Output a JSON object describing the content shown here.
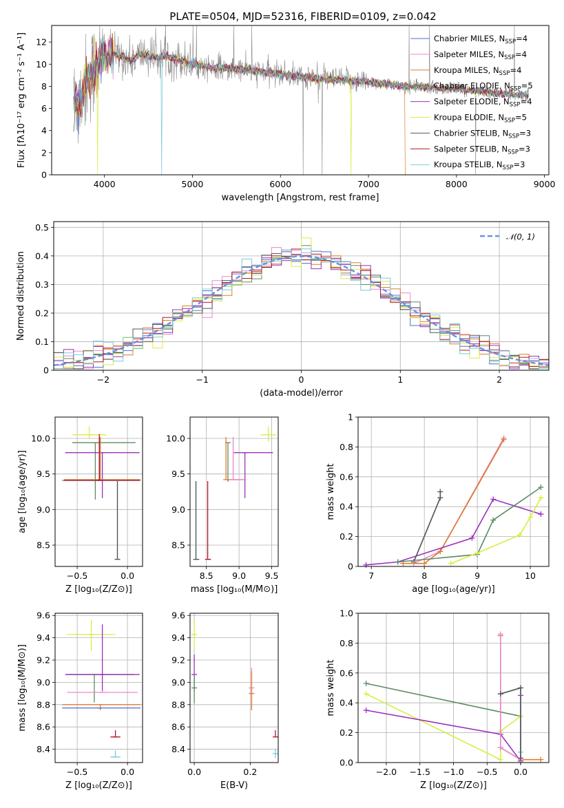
{
  "colors": {
    "Chabrier MILES": "#4a6fd0",
    "Salpeter MILES": "#e987cf",
    "Kroupa MILES": "#e07b2a",
    "Chabrier ELODIE": "#5b8b63",
    "Salpeter ELODIE": "#9b2fbc",
    "Kroupa ELODIE": "#d9ec42",
    "Chabrier STELIB": "#555555",
    "Salpeter STELIB": "#b0141e",
    "Kroupa STELIB": "#7ec8d6",
    "spectrum": "#888888",
    "normal": "#6a90e0"
  },
  "chart_data": [
    {
      "name": "spectrum",
      "type": "line",
      "title": "PLATE=0504, MJD=52316, FIBERID=0109, z=0.042",
      "xlabel": "wavelength [Angstrom, rest frame]",
      "ylabel": "Flux [fλ10⁻¹⁷ erg cm⁻² s⁻¹ A⁻¹]",
      "xlim": [
        3400,
        9050
      ],
      "ylim": [
        0,
        13.5
      ],
      "xticks": [
        4000,
        5000,
        6000,
        7000,
        8000,
        9000
      ],
      "yticks": [
        0,
        2,
        4,
        6,
        8,
        10,
        12
      ],
      "grid": false,
      "legend_position": "top-right",
      "legend": [
        {
          "label": "Chabrier MILES, N",
          "sub": "SSP",
          "suffix": "=4",
          "key": "Chabrier MILES"
        },
        {
          "label": "Salpeter MILES, N",
          "sub": "SSP",
          "suffix": "=4",
          "key": "Salpeter MILES"
        },
        {
          "label": "Kroupa MILES, N",
          "sub": "SSP",
          "suffix": "=4",
          "key": "Kroupa MILES"
        },
        {
          "label": "Chabrier ELODIE, N",
          "sub": "SSP",
          "suffix": "=5",
          "key": "Chabrier ELODIE"
        },
        {
          "label": "Salpeter ELODIE, N",
          "sub": "SSP",
          "suffix": "=4",
          "key": "Salpeter ELODIE"
        },
        {
          "label": "Kroupa ELODIE, N",
          "sub": "SSP",
          "suffix": "=5",
          "key": "Kroupa ELODIE"
        },
        {
          "label": "Chabrier STELIB, N",
          "sub": "SSP",
          "suffix": "=3",
          "key": "Chabrier STELIB"
        },
        {
          "label": "Salpeter STELIB, N",
          "sub": "SSP",
          "suffix": "=3",
          "key": "Salpeter STELIB"
        },
        {
          "label": "Kroupa STELIB, N",
          "sub": "SSP",
          "suffix": "=3",
          "key": "Kroupa STELIB"
        }
      ],
      "continuum": {
        "x": [
          3650,
          3700,
          3800,
          3900,
          4000,
          4100,
          4200,
          4300,
          4400,
          4500,
          4600,
          4700,
          4800,
          4900,
          5000,
          5200,
          5400,
          5600,
          5800,
          6000,
          6200,
          6400,
          6600,
          6800,
          7000,
          7200,
          7400,
          7600,
          7800,
          8000,
          8200,
          8400,
          8600,
          8800
        ],
        "y": [
          6.6,
          6.3,
          8.6,
          9.8,
          10.6,
          10.9,
          10.7,
          10.3,
          10.9,
          10.8,
          10.6,
          10.7,
          10.5,
          10.3,
          10.0,
          9.7,
          9.6,
          9.5,
          9.3,
          9.1,
          8.9,
          8.7,
          8.6,
          8.5,
          8.4,
          8.2,
          8.0,
          8.0,
          7.8,
          7.8,
          7.6,
          7.4,
          7.3,
          7.2
        ]
      },
      "drops": [
        {
          "x": 3920,
          "y": 0,
          "key": "Kroupa ELODIE"
        },
        {
          "x": 4650,
          "y": 0,
          "key": "Kroupa STELIB"
        },
        {
          "x": 6800,
          "y": 0,
          "key": "Kroupa ELODIE"
        },
        {
          "x": 7420,
          "y": 0,
          "key": "Kroupa MILES"
        }
      ]
    },
    {
      "name": "residuals",
      "type": "histogram",
      "xlabel": "(data-model)/error",
      "ylabel": "Normed distribution",
      "xlim": [
        -2.5,
        2.5
      ],
      "ylim": [
        0,
        0.52
      ],
      "xticks": [
        -2,
        -1,
        0,
        1,
        2
      ],
      "yticks": [
        0.0,
        0.1,
        0.2,
        0.3,
        0.4,
        0.5
      ],
      "grid": true,
      "legend_position": "top-right",
      "legend": [
        {
          "label": "𝒩(0, 1)",
          "key": "normal"
        }
      ],
      "normal_curve": {
        "mean": 0,
        "sigma": 1
      }
    },
    {
      "name": "age-vs-Z",
      "type": "errorbar",
      "xlabel": "Z [log₁₀(Z/Z⊙)]",
      "ylabel": "age  [log₁₀(age/yr)]",
      "xlim": [
        -0.72,
        0.15
      ],
      "ylim": [
        8.2,
        10.3
      ],
      "xticks": [
        -0.5,
        0.0
      ],
      "yticks": [
        8.5,
        9.0,
        9.5,
        10.0
      ],
      "grid": true,
      "points": [
        {
          "key": "Kroupa ELODIE",
          "x": -0.38,
          "y": 10.05,
          "xerr": [
            0.17,
            0.17
          ],
          "yerr": [
            0.05,
            0.12
          ]
        },
        {
          "key": "Chabrier ELODIE",
          "x": -0.32,
          "y": 9.94,
          "xerr": [
            0.23,
            0.4
          ],
          "yerr": [
            0.8,
            0.0
          ]
        },
        {
          "key": "Salpeter ELODIE",
          "x": -0.25,
          "y": 9.8,
          "xerr": [
            0.37,
            0.37
          ],
          "yerr": [
            0.64,
            0.0
          ]
        },
        {
          "key": "Kroupa MILES",
          "x": -0.27,
          "y": 9.42,
          "xerr": [
            0.36,
            0.4
          ],
          "yerr": [
            0.0,
            0.6
          ]
        },
        {
          "key": "Chabrier MILES",
          "x": -0.28,
          "y": 9.41,
          "xerr": [
            0.37,
            0.41
          ],
          "yerr": [
            0.0,
            0.6
          ]
        },
        {
          "key": "Salpeter STELIB",
          "x": -0.28,
          "y": 9.41,
          "xerr": [
            0.35,
            0.4
          ],
          "yerr": [
            0.0,
            0.65
          ]
        },
        {
          "key": "Kroupa STELIB",
          "x": -0.1,
          "y": 8.3,
          "xerr": [
            0.0,
            0.0
          ],
          "yerr": [
            0.0,
            1.1
          ]
        },
        {
          "key": "Chabrier STELIB",
          "x": -0.1,
          "y": 8.3,
          "xerr": [
            0.0,
            0.0
          ],
          "yerr": [
            0.0,
            1.1
          ]
        }
      ]
    },
    {
      "name": "age-vs-mass",
      "type": "errorbar",
      "xlabel": "mass [log₁₀(M/M⊙)]",
      "ylabel": "",
      "xlim": [
        8.25,
        9.6
      ],
      "ylim": [
        8.2,
        10.3
      ],
      "xticks": [
        8.5,
        9.0,
        9.5
      ],
      "yticks": [
        8.5,
        9.0,
        9.5,
        10.0
      ],
      "grid": true,
      "points": [
        {
          "key": "Kroupa ELODIE",
          "x": 9.45,
          "y": 10.05,
          "xerr": [
            0.12,
            0.12
          ],
          "yerr": [
            0.1,
            0.12
          ]
        },
        {
          "key": "Chabrier ELODIE",
          "x": 8.83,
          "y": 9.94,
          "xerr": [
            0.0,
            0.0
          ],
          "yerr": [
            0.55,
            0.0
          ]
        },
        {
          "key": "Salpeter ELODIE",
          "x": 9.09,
          "y": 9.8,
          "xerr": [
            0.17,
            0.43
          ],
          "yerr": [
            0.64,
            0.0
          ]
        },
        {
          "key": "Kroupa MILES",
          "x": 8.8,
          "y": 9.42,
          "xerr": [
            0.0,
            0.3
          ],
          "yerr": [
            0.0,
            0.6
          ]
        },
        {
          "key": "Salpeter MILES",
          "x": 8.91,
          "y": 9.42,
          "xerr": [
            0.0,
            0.2
          ],
          "yerr": [
            0.0,
            0.6
          ]
        },
        {
          "key": "Salpeter STELIB",
          "x": 8.52,
          "y": 8.3,
          "xerr": [
            0.0,
            0.05
          ],
          "yerr": [
            0.0,
            1.1
          ]
        },
        {
          "key": "Kroupa STELIB",
          "x": 8.34,
          "y": 8.3,
          "xerr": [
            0.0,
            0.05
          ],
          "yerr": [
            0.0,
            1.1
          ]
        },
        {
          "key": "Chabrier STELIB",
          "x": 8.34,
          "y": 8.3,
          "xerr": [
            0.0,
            0.05
          ],
          "yerr": [
            0.0,
            1.1
          ]
        }
      ]
    },
    {
      "name": "mass-weight-vs-age",
      "type": "line",
      "xlabel": "age  [log₁₀(age/yr)]",
      "ylabel": "mass weight",
      "xlim": [
        6.75,
        10.35
      ],
      "ylim": [
        0,
        1
      ],
      "xticks": [
        7,
        8,
        9,
        10
      ],
      "yticks": [
        0.0,
        0.2,
        0.4,
        0.6,
        0.8,
        1.0
      ],
      "grid": true,
      "series": [
        {
          "key": "Kroupa STELIB",
          "x": [
            7.8,
            8.3,
            8.3
          ],
          "y": [
            0.03,
            0.46,
            0.5
          ]
        },
        {
          "key": "Chabrier STELIB",
          "x": [
            7.8,
            8.3,
            8.3
          ],
          "y": [
            0.03,
            0.46,
            0.5
          ]
        },
        {
          "key": "Salpeter MILES",
          "x": [
            7.8,
            8.3,
            9.5
          ],
          "y": [
            0.02,
            0.1,
            0.86
          ]
        },
        {
          "key": "Kroupa MILES",
          "x": [
            7.6,
            8.0,
            8.3,
            9.5
          ],
          "y": [
            0.02,
            0.02,
            0.1,
            0.85
          ]
        },
        {
          "key": "Salpeter ELODIE",
          "x": [
            6.9,
            7.5,
            8.9,
            9.3,
            10.2
          ],
          "y": [
            0.01,
            0.03,
            0.19,
            0.45,
            0.35
          ]
        },
        {
          "key": "Chabrier ELODIE",
          "x": [
            7.5,
            9.0,
            9.3,
            10.2
          ],
          "y": [
            0.03,
            0.08,
            0.31,
            0.53
          ]
        },
        {
          "key": "Kroupa ELODIE",
          "x": [
            8.5,
            9.0,
            9.8,
            10.0,
            10.2
          ],
          "y": [
            0.02,
            0.09,
            0.21,
            0.33,
            0.46
          ]
        }
      ]
    },
    {
      "name": "mass-vs-Z",
      "type": "errorbar",
      "xlabel": "Z [log₁₀(Z/Z⊙)]",
      "ylabel": "mass [log₁₀(M/M⊙)]",
      "xlim": [
        -0.72,
        0.15
      ],
      "ylim": [
        8.28,
        9.62
      ],
      "xticks": [
        -0.5,
        0.0
      ],
      "yticks": [
        8.4,
        8.6,
        8.8,
        9.0,
        9.2,
        9.4,
        9.6
      ],
      "grid": true,
      "points": [
        {
          "key": "Kroupa ELODIE",
          "x": -0.36,
          "y": 9.43,
          "xerr": [
            0.24,
            0.24
          ],
          "yerr": [
            0.15,
            0.13
          ]
        },
        {
          "key": "Chabrier ELODIE",
          "x": -0.33,
          "y": 9.07,
          "xerr": [
            0.27,
            0.4
          ],
          "yerr": [
            0.25,
            0.0
          ]
        },
        {
          "key": "Salpeter ELODIE",
          "x": -0.25,
          "y": 9.07,
          "xerr": [
            0.37,
            0.37
          ],
          "yerr": [
            0.15,
            0.45
          ]
        },
        {
          "key": "Salpeter MILES",
          "x": -0.25,
          "y": 8.91,
          "xerr": [
            0.35,
            0.35
          ],
          "yerr": [
            0.0,
            0.0
          ]
        },
        {
          "key": "Kroupa MILES",
          "x": -0.27,
          "y": 8.8,
          "xerr": [
            0.38,
            0.4
          ],
          "yerr": [
            0.05,
            0.0
          ]
        },
        {
          "key": "Chabrier MILES",
          "x": -0.28,
          "y": 8.77,
          "xerr": [
            0.37,
            0.41
          ],
          "yerr": [
            0.0,
            0.0
          ]
        },
        {
          "key": "Salpeter STELIB",
          "x": -0.12,
          "y": 8.51,
          "xerr": [
            0.05,
            0.05
          ],
          "yerr": [
            0.0,
            0.06
          ]
        },
        {
          "key": "Kroupa STELIB",
          "x": -0.12,
          "y": 8.33,
          "xerr": [
            0.05,
            0.05
          ],
          "yerr": [
            0.0,
            0.06
          ]
        }
      ]
    },
    {
      "name": "mass-vs-EBV",
      "type": "errorbar",
      "xlabel": "E(B-V)",
      "ylabel": "",
      "xlim": [
        -0.015,
        0.3
      ],
      "ylim": [
        8.28,
        9.62
      ],
      "xticks": [
        0.0,
        0.2
      ],
      "yticks": [
        8.4,
        8.6,
        8.8,
        9.0,
        9.2,
        9.4,
        9.6
      ],
      "grid": true,
      "points": [
        {
          "key": "Kroupa ELODIE",
          "x": 0.0,
          "y": 9.43,
          "xerr": [
            0,
            0
          ],
          "yerr": [
            0.13,
            0.13
          ]
        },
        {
          "key": "Salpeter ELODIE",
          "x": 0.0,
          "y": 9.07,
          "xerr": [
            0,
            0
          ],
          "yerr": [
            0.15,
            0.18
          ]
        },
        {
          "key": "Chabrier ELODIE",
          "x": 0.0,
          "y": 8.95,
          "xerr": [
            0,
            0
          ],
          "yerr": [
            0.14,
            0.12
          ]
        },
        {
          "key": "Salpeter MILES",
          "x": 0.205,
          "y": 8.95,
          "xerr": [
            0,
            0
          ],
          "yerr": [
            0.2,
            0.18
          ]
        },
        {
          "key": "Kroupa MILES",
          "x": 0.205,
          "y": 8.9,
          "xerr": [
            0,
            0
          ],
          "yerr": [
            0.15,
            0.2
          ]
        },
        {
          "key": "Salpeter STELIB",
          "x": 0.29,
          "y": 8.51,
          "xerr": [
            0,
            0
          ],
          "yerr": [
            0.0,
            0.06
          ]
        },
        {
          "key": "Kroupa STELIB",
          "x": 0.29,
          "y": 8.36,
          "xerr": [
            0,
            0
          ],
          "yerr": [
            0.04,
            0.04
          ]
        }
      ]
    },
    {
      "name": "mass-weight-vs-Z",
      "type": "line",
      "xlabel": "Z [log₁₀(Z/Z⊙)]",
      "ylabel": "mass weight",
      "xlim": [
        -2.42,
        0.42
      ],
      "ylim": [
        0,
        1
      ],
      "xticks": [
        -2.0,
        -1.5,
        -1.0,
        -0.5,
        0.0
      ],
      "yticks": [
        0.0,
        0.2,
        0.4,
        0.6,
        0.8,
        1.0
      ],
      "grid": true,
      "series": [
        {
          "key": "Chabrier ELODIE",
          "x": [
            -2.3,
            0.0
          ],
          "y": [
            0.53,
            0.31
          ]
        },
        {
          "key": "Kroupa ELODIE",
          "x": [
            -2.3,
            -0.3,
            -0.3,
            0.0
          ],
          "y": [
            0.46,
            0.02,
            0.21,
            0.31
          ]
        },
        {
          "key": "Salpeter ELODIE",
          "x": [
            -2.3,
            -0.3,
            0.0,
            0.0
          ],
          "y": [
            0.35,
            0.19,
            0.01,
            0.45
          ]
        },
        {
          "key": "Kroupa MILES",
          "x": [
            -0.3,
            -0.3,
            0.0,
            0.3
          ],
          "y": [
            0.85,
            0.1,
            0.02,
            0.02
          ]
        },
        {
          "key": "Salpeter MILES",
          "x": [
            -0.3,
            -0.3,
            0.0
          ],
          "y": [
            0.86,
            0.1,
            0.02
          ]
        },
        {
          "key": "Kroupa STELIB",
          "x": [
            -0.3,
            0.0,
            0.0,
            0.0
          ],
          "y": [
            0.46,
            0.5,
            0.03,
            0.07
          ]
        },
        {
          "key": "Chabrier STELIB",
          "x": [
            -0.3,
            0.0,
            0.0
          ],
          "y": [
            0.46,
            0.5,
            0.03
          ]
        }
      ]
    }
  ]
}
